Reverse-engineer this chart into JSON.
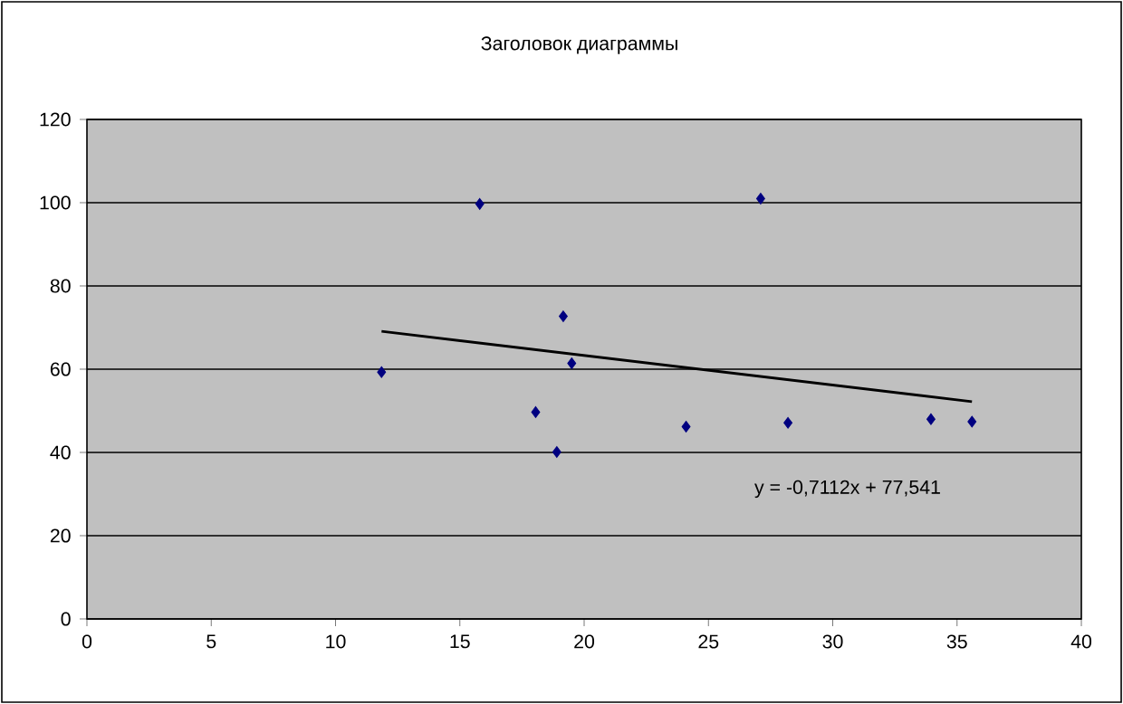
{
  "chart_data": {
    "type": "scatter",
    "title": "Заголовок диаграммы",
    "series": [
      {
        "color": "#000080",
        "marker": "diamond",
        "x": [
          11.85,
          15.8,
          18.05,
          18.9,
          19.16,
          19.5,
          24.1,
          27.1,
          28.2,
          33.95,
          35.6
        ],
        "values": [
          59.3,
          99.7,
          49.7,
          40.1,
          72.7,
          61.4,
          46.2,
          101,
          47.1,
          48,
          47.4
        ]
      },
      {
        "type": "line",
        "color": "#000000",
        "marker": "none",
        "x": [
          11.85,
          35.6
        ],
        "values": [
          69.1,
          52.2
        ]
      }
    ],
    "annotations": [
      "y = -0,7112x + 77,541"
    ],
    "xlim": [
      0,
      40
    ],
    "xticks": [
      0,
      5,
      10,
      15,
      20,
      25,
      30,
      35,
      40
    ],
    "ylim": [
      0,
      120
    ],
    "yticks": [
      0,
      20,
      40,
      60,
      80,
      100,
      120
    ],
    "grid": "y"
  }
}
